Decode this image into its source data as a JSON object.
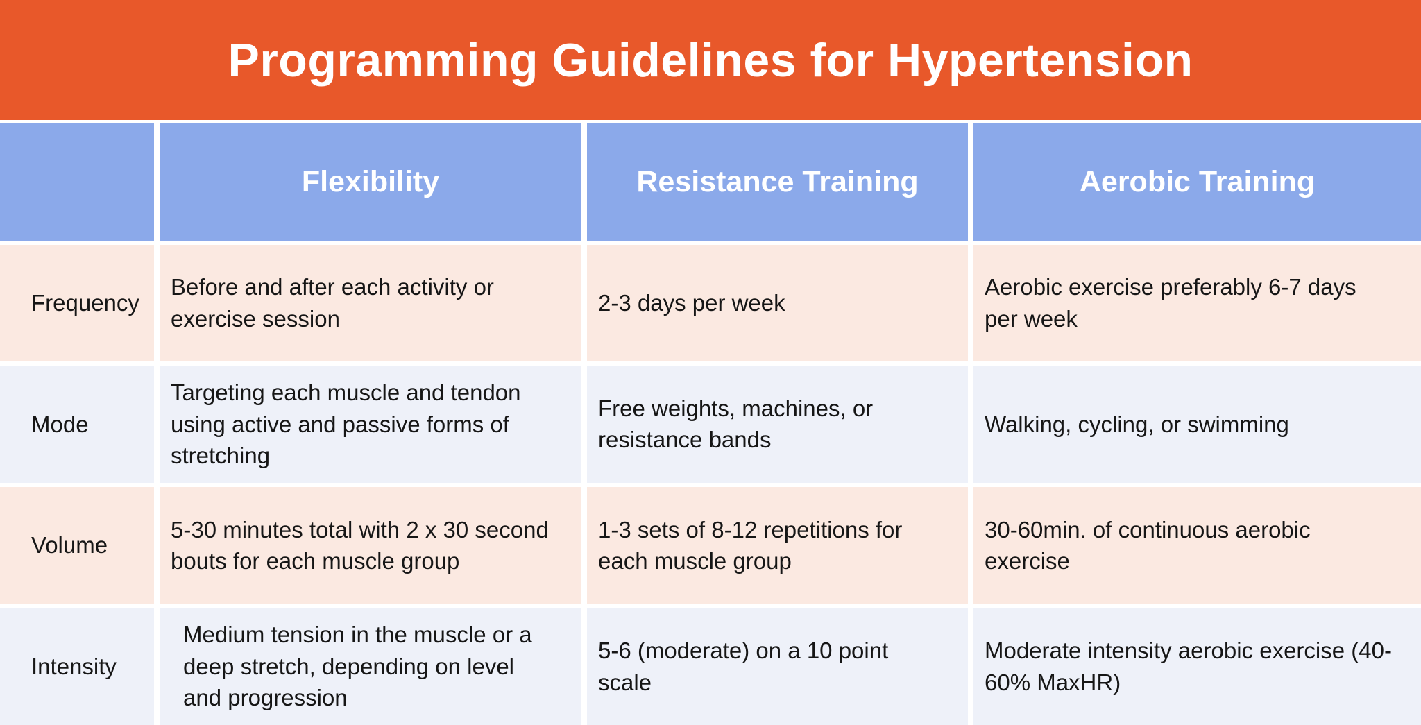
{
  "title": "Programming Guidelines for Hypertension",
  "colors": {
    "banner": "#E8582A",
    "header_row": "#8BA9EA",
    "row_peach": "#FBE9E1",
    "row_lavender": "#EEF1F9",
    "header_text": "#FFFFFF",
    "body_text": "#161616",
    "grid_lines": "#FFFFFF"
  },
  "table": {
    "column_headers": [
      "Flexibility",
      "Resistance Training",
      "Aerobic Training"
    ],
    "rows": [
      {
        "label": "Frequency",
        "cells": [
          "Before and after each activity or exercise session",
          "2-3 days per week",
          "Aerobic exercise preferably 6-7 days per week"
        ]
      },
      {
        "label": "Mode",
        "cells": [
          "Targeting each muscle and tendon using active and passive forms of stretching",
          "Free weights, machines, or resistance bands",
          "Walking, cycling, or swimming"
        ]
      },
      {
        "label": "Volume",
        "cells": [
          "5-30 minutes total with 2 x 30 second bouts for each muscle group",
          "1-3 sets of 8-12 repetitions for each muscle group",
          "30-60min. of continuous aerobic exercise"
        ]
      },
      {
        "label": "Intensity",
        "cells": [
          "Medium tension in the muscle or a deep stretch, depending on level and progression",
          "5-6 (moderate) on a 10 point scale",
          "Moderate intensity aerobic exercise (40-60% MaxHR)"
        ]
      }
    ]
  }
}
